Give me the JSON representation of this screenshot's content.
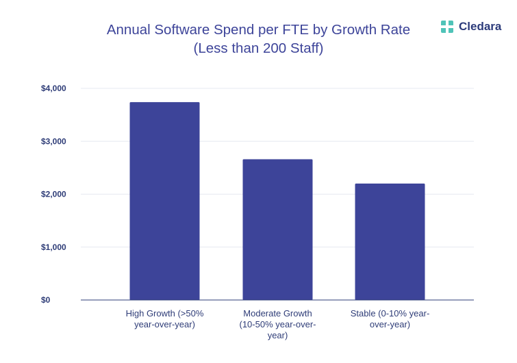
{
  "chart_data": {
    "type": "bar",
    "title_lines": [
      "Annual Software Spend per FTE by Growth Rate",
      "(Less than 200 Staff)"
    ],
    "categories": [
      "High Growth (>50% year-over-year)",
      "Moderate Growth (10-50% year-over-year)",
      "Stable (0-10% year-over-year)"
    ],
    "category_label_lines": [
      [
        "High Growth (>50%",
        "year-over-year)"
      ],
      [
        "Moderate Growth",
        "(10-50% year-over-",
        "year)"
      ],
      [
        "Stable (0-10% year-",
        "over-year)"
      ]
    ],
    "values": [
      3740,
      2660,
      2200
    ],
    "ylim": [
      0,
      4000
    ],
    "yticks": [
      0,
      1000,
      2000,
      3000,
      4000
    ],
    "ytick_labels": [
      "$0",
      "$1,000",
      "$2,000",
      "$3,000",
      "$4,000"
    ],
    "xlabel": "",
    "ylabel": "",
    "grid": true,
    "legend": "none",
    "bar_color": "#3d4499"
  },
  "brand": {
    "name": "Cledara",
    "logo_icon": "cledara-logo-icon",
    "logo_color": "#4fc3b8"
  }
}
